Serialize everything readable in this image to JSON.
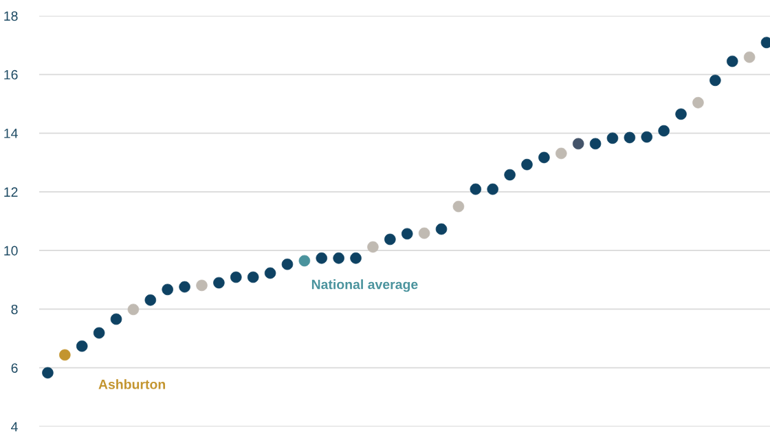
{
  "chart_data": {
    "type": "scatter",
    "categories": [
      null,
      null,
      null,
      null,
      null,
      null,
      null,
      null,
      null,
      null,
      null,
      null,
      null,
      null,
      null,
      null,
      null,
      null,
      null,
      null,
      null,
      null,
      null,
      null,
      null,
      null,
      null,
      null,
      null,
      null,
      null,
      null,
      null,
      null,
      null,
      null,
      null,
      null,
      null,
      null,
      null,
      null,
      null
    ],
    "values": [
      5.83,
      6.44,
      6.74,
      7.19,
      7.66,
      7.99,
      8.31,
      8.67,
      8.76,
      8.81,
      8.9,
      9.09,
      9.09,
      9.23,
      9.53,
      9.65,
      9.74,
      9.74,
      9.74,
      10.12,
      10.38,
      10.57,
      10.59,
      10.73,
      11.5,
      12.09,
      12.09,
      12.58,
      12.93,
      13.17,
      13.31,
      13.64,
      13.64,
      13.83,
      13.85,
      13.87,
      14.08,
      14.65,
      15.04,
      15.8,
      16.45,
      16.59,
      17.09
    ],
    "colors": [
      "#0e4263",
      "#c3952f",
      "#0e4263",
      "#0e4263",
      "#0e4263",
      "#c0bab2",
      "#0e4263",
      "#0e4263",
      "#0e4263",
      "#c0bab2",
      "#0e4263",
      "#0e4263",
      "#0e4263",
      "#0e4263",
      "#0e4263",
      "#4a939d",
      "#0e4263",
      "#0e4263",
      "#0e4263",
      "#c0bab2",
      "#0e4263",
      "#0e4263",
      "#c0bab2",
      "#0e4263",
      "#c0bab2",
      "#0e4263",
      "#0e4263",
      "#0e4263",
      "#0e4263",
      "#0e4263",
      "#c0bab2",
      "#44546a",
      "#0e4263",
      "#0e4263",
      "#0e4263",
      "#0e4263",
      "#0e4263",
      "#0e4263",
      "#c0bab2",
      "#0e4263",
      "#0e4263",
      "#c0bab2",
      "#0e4263"
    ],
    "ylim": [
      4,
      18
    ],
    "yticks": [
      4,
      6,
      8,
      10,
      12,
      14,
      16,
      18
    ],
    "grid": "y",
    "marker": "circle",
    "annotations": [
      "Ashburton",
      "National average"
    ]
  }
}
